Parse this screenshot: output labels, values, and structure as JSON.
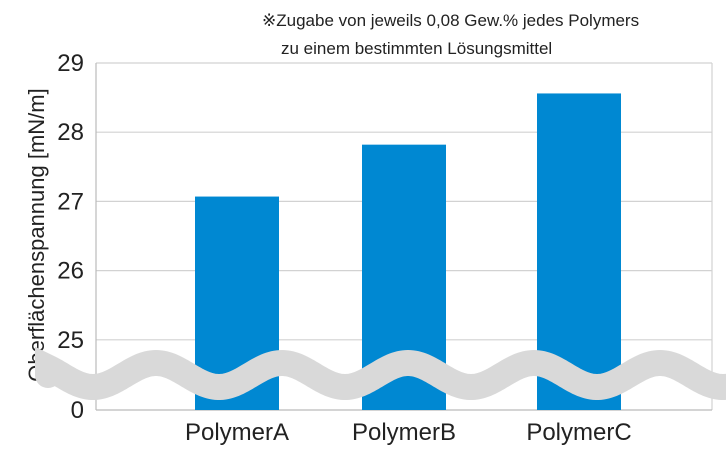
{
  "chart_data": {
    "type": "bar",
    "categories": [
      "PolymerA",
      "PolymerB",
      "PolymerC"
    ],
    "values": [
      27.07,
      27.82,
      28.56
    ],
    "ylabel": "Oberflächenspannung [mN/m]",
    "ylim": [
      0,
      29
    ],
    "axis_break": [
      0,
      25
    ],
    "yticks": [
      "0",
      "25",
      "26",
      "27",
      "28",
      "29"
    ],
    "grid": true,
    "bar_color": "#0088d2",
    "note": [
      "※Zugabe von jeweils 0,08 Gew.% jedes Polymers",
      "zu einem bestimmten Lösungsmittel"
    ]
  }
}
